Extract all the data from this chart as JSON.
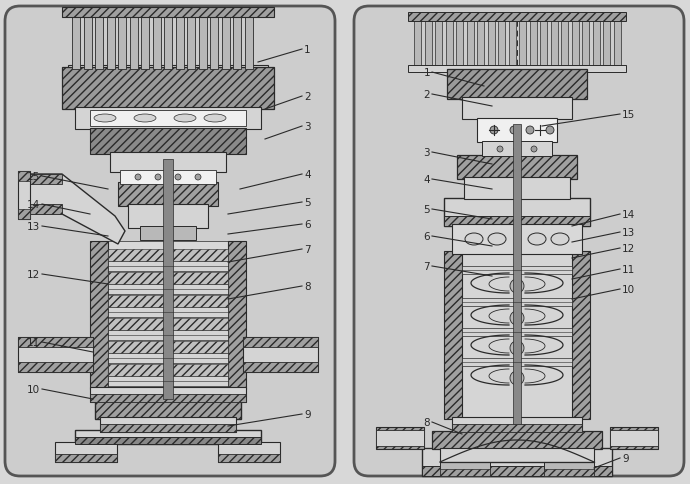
{
  "bg_color": "#d8d8d8",
  "panel_bg": "#e0e0e0",
  "lc": "#2a2a2a",
  "hatch_fc": "#a0a0a0",
  "mid_gray": "#b8b8b8",
  "light_fc": "#d4d4d4",
  "white_fc": "#f0f0f0",
  "fig_w": 6.9,
  "fig_h": 4.85
}
